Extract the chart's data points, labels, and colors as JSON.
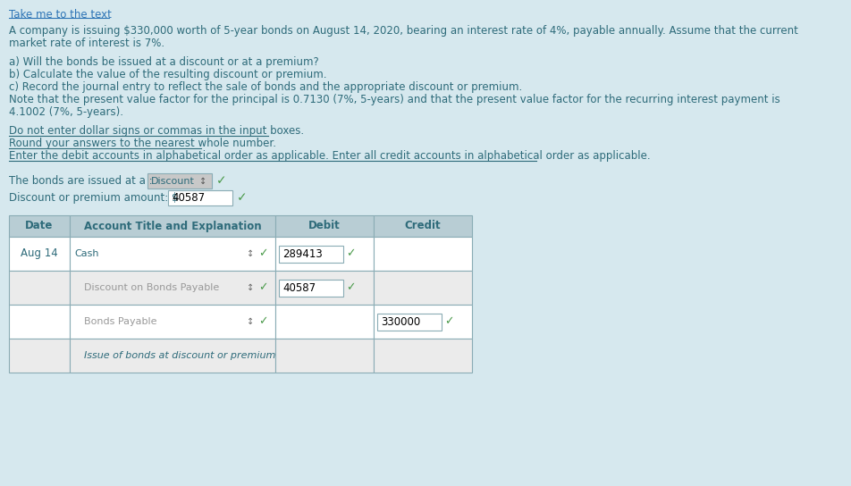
{
  "background_color": "#d6e8ee",
  "link_text": "Take me to the text",
  "link_color": "#2e75b6",
  "text_color": "#2e6b7a",
  "body_text": [
    "A company is issuing $330,000 worth of 5-year bonds on August 14, 2020, bearing an interest rate of 4%, payable annually. Assume that the current",
    "market rate of interest is 7%.",
    "",
    "a) Will the bonds be issued at a discount or at a premium?",
    "b) Calculate the value of the resulting discount or premium.",
    "c) Record the journal entry to reflect the sale of bonds and the appropriate discount or premium.",
    "Note that the present value factor for the principal is 0.7130 (7%, 5-years) and that the present value factor for the recurring interest payment is",
    "4.1002 (7%, 5-years)."
  ],
  "underlined_text": [
    "Do not enter dollar signs or commas in the input boxes.",
    "Round your answers to the nearest whole number.",
    "Enter the debit accounts in alphabetical order as applicable. Enter all credit accounts in alphabetical order as applicable."
  ],
  "bonds_issued_label": "The bonds are issued at a : ",
  "bonds_issued_value": "Discount",
  "discount_label": "Discount or premium amount: $",
  "discount_value": "40587",
  "table_header": [
    "Date",
    "Account Title and Explanation",
    "Debit",
    "Credit"
  ],
  "table_rows": [
    [
      "Aug 14",
      "Cash",
      "289413",
      ""
    ],
    [
      "",
      "Discount on Bonds Payable",
      "40587",
      ""
    ],
    [
      "",
      "Bonds Payable",
      "",
      "330000"
    ],
    [
      "",
      "Issue of bonds at discount or premium",
      "",
      ""
    ]
  ],
  "table_bg_header": "#b8cdd4",
  "table_bg_row1": "#ffffff",
  "table_bg_row2": "#ebebeb",
  "table_border_color": "#8aacb5",
  "input_box_color": "#ffffff",
  "input_box_border": "#8aacb5",
  "checkmark_color": "#4a9a4a",
  "dropdown_color": "#c8c8c8",
  "underline_lengths": [
    290,
    215,
    590
  ]
}
